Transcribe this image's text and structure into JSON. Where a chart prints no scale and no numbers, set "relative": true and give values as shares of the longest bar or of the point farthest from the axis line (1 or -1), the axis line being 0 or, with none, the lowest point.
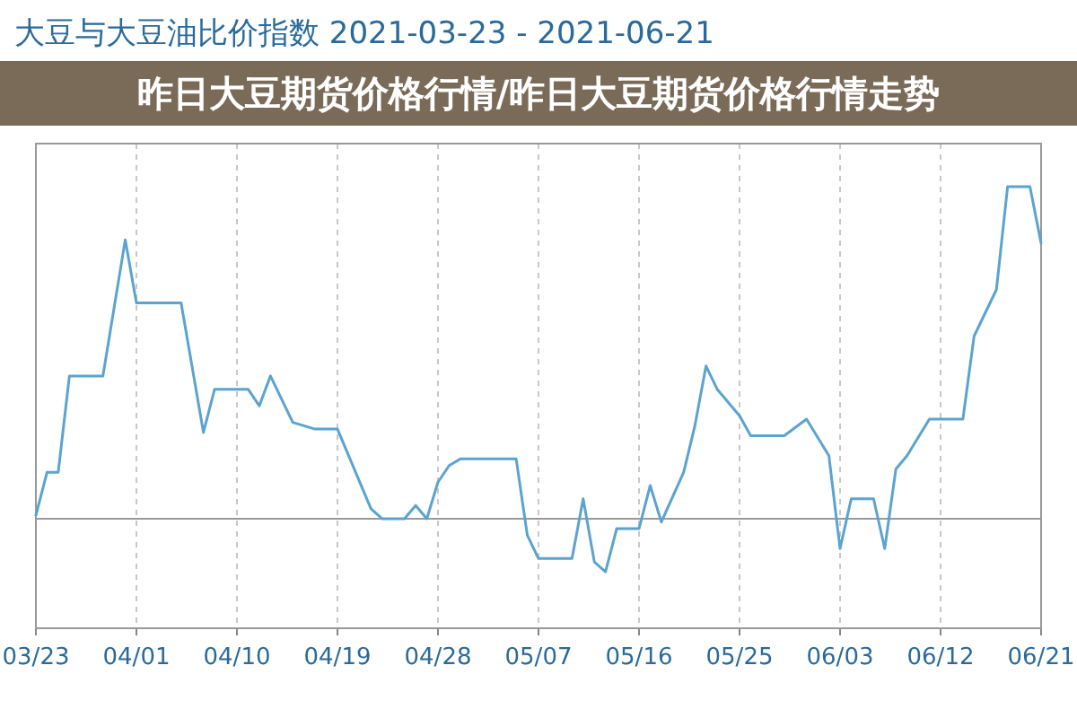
{
  "chart_data": {
    "type": "line",
    "title": "大豆与大豆油比价指数 2021-03-23 - 2021-06-21",
    "annotations": [
      "昨日大豆期货价格行情/昨日大豆期货价格行情走势"
    ],
    "relative": true,
    "grid": "x",
    "marker": "none",
    "line_style": "solid",
    "xlim": [
      "2021-03-23",
      "2021-06-21"
    ],
    "xticks": [
      {
        "value": "2021-03-23",
        "label": "03/23"
      },
      {
        "value": "2021-04-01",
        "label": "04/01"
      },
      {
        "value": "2021-04-10",
        "label": "04/10"
      },
      {
        "value": "2021-04-19",
        "label": "04/19"
      },
      {
        "value": "2021-04-28",
        "label": "04/28"
      },
      {
        "value": "2021-05-07",
        "label": "05/07"
      },
      {
        "value": "2021-05-16",
        "label": "05/16"
      },
      {
        "value": "2021-05-25",
        "label": "05/25"
      },
      {
        "value": "2021-06-03",
        "label": "06/03"
      },
      {
        "value": "2021-06-12",
        "label": "06/12"
      },
      {
        "value": "2021-06-21",
        "label": "06/21"
      }
    ],
    "x": [
      "2021-03-23",
      "2021-03-24",
      "2021-03-25",
      "2021-03-26",
      "2021-03-29",
      "2021-03-31",
      "2021-04-01",
      "2021-04-02",
      "2021-04-05",
      "2021-04-07",
      "2021-04-08",
      "2021-04-11",
      "2021-04-12",
      "2021-04-13",
      "2021-04-15",
      "2021-04-17",
      "2021-04-19",
      "2021-04-20",
      "2021-04-22",
      "2021-04-23",
      "2021-04-25",
      "2021-04-26",
      "2021-04-27",
      "2021-04-28",
      "2021-04-29",
      "2021-04-30",
      "2021-05-05",
      "2021-05-06",
      "2021-05-07",
      "2021-05-10",
      "2021-05-11",
      "2021-05-12",
      "2021-05-13",
      "2021-05-14",
      "2021-05-16",
      "2021-05-17",
      "2021-05-18",
      "2021-05-20",
      "2021-05-21",
      "2021-05-22",
      "2021-05-23",
      "2021-05-25",
      "2021-05-26",
      "2021-05-29",
      "2021-05-31",
      "2021-06-02",
      "2021-06-03",
      "2021-06-04",
      "2021-06-06",
      "2021-06-07",
      "2021-06-08",
      "2021-06-09",
      "2021-06-11",
      "2021-06-14",
      "2021-06-15",
      "2021-06-17",
      "2021-06-18",
      "2021-06-20",
      "2021-06-21"
    ],
    "series": [
      {
        "color": "#5ba3d0",
        "values": [
          0.01,
          0.14,
          0.14,
          0.43,
          0.43,
          0.84,
          0.65,
          0.65,
          0.65,
          0.26,
          0.39,
          0.39,
          0.34,
          0.43,
          0.29,
          0.27,
          0.27,
          0.19,
          0.03,
          0.0,
          0.0,
          0.04,
          0.0,
          0.11,
          0.16,
          0.18,
          0.18,
          -0.05,
          -0.12,
          -0.12,
          0.06,
          -0.13,
          -0.16,
          -0.03,
          -0.03,
          0.1,
          -0.01,
          0.14,
          0.28,
          0.46,
          0.39,
          0.31,
          0.25,
          0.25,
          0.3,
          0.19,
          -0.09,
          0.06,
          0.06,
          -0.09,
          0.15,
          0.19,
          0.3,
          0.3,
          0.55,
          0.69,
          1.0,
          1.0,
          0.83
        ]
      }
    ]
  }
}
